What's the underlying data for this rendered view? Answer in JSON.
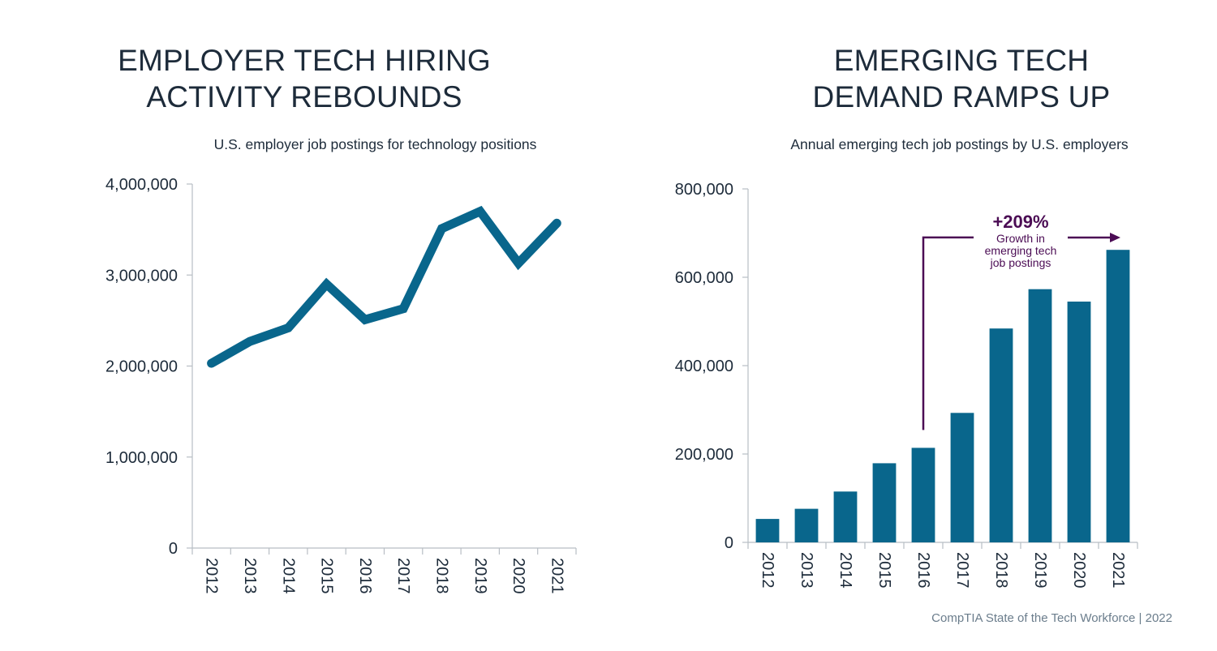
{
  "source_note": "CompTIA State of the Tech Workforce | 2022",
  "colors": {
    "series": "#09668c",
    "axis": "#b8bec4",
    "text": "#1d2b3a",
    "annotation": "#4b0c54",
    "source": "#6b7d8c"
  },
  "chart_data": [
    {
      "type": "line",
      "title": "EMPLOYER TECH HIRING ACTIVITY REBOUNDS",
      "subtitle": "U.S. employer job postings for technology positions",
      "xlabel": "",
      "ylabel": "",
      "categories": [
        "2012",
        "2013",
        "2014",
        "2015",
        "2016",
        "2017",
        "2018",
        "2019",
        "2020",
        "2021"
      ],
      "values": [
        2030000,
        2270000,
        2420000,
        2900000,
        2510000,
        2630000,
        3510000,
        3700000,
        3130000,
        3570000
      ],
      "ylim": [
        0,
        4000000
      ],
      "yticks": [
        0,
        1000000,
        2000000,
        3000000,
        4000000
      ],
      "ytick_labels": [
        "0",
        "1,000,000",
        "2,000,000",
        "3,000,000",
        "4,000,000"
      ],
      "grid": false,
      "legend": "none"
    },
    {
      "type": "bar",
      "title": "EMERGING TECH DEMAND RAMPS UP",
      "subtitle": "Annual emerging tech job postings by U.S. employers",
      "xlabel": "",
      "ylabel": "",
      "categories": [
        "2012",
        "2013",
        "2014",
        "2015",
        "2016",
        "2017",
        "2018",
        "2019",
        "2020",
        "2021"
      ],
      "values": [
        53000,
        76000,
        115000,
        179000,
        214000,
        293000,
        484000,
        573000,
        545000,
        662000
      ],
      "ylim": [
        0,
        800000
      ],
      "yticks": [
        0,
        200000,
        400000,
        600000,
        800000
      ],
      "ytick_labels": [
        "0",
        "200,000",
        "400,000",
        "600,000",
        "800,000"
      ],
      "grid": false,
      "legend": "none",
      "annotation": {
        "headline": "+209%",
        "lines": [
          "Growth in",
          "emerging tech",
          "job postings"
        ],
        "from": "2016",
        "to": "2021"
      }
    }
  ]
}
